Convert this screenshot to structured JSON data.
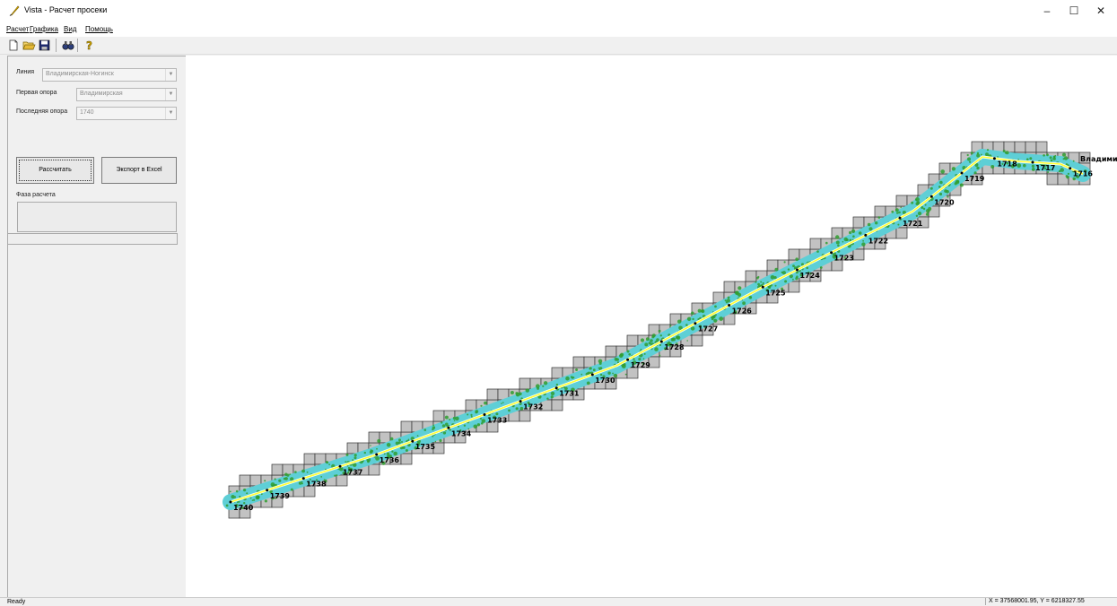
{
  "window": {
    "title": "Vista - Расчет просеки",
    "minimize": "–",
    "maximize": "☐",
    "close": "✕"
  },
  "menu": [
    "Расчет",
    "Графика",
    "Вид",
    "Помощь"
  ],
  "toolbar": {
    "icons": [
      "new-file-icon",
      "open-folder-icon",
      "save-icon",
      "binoculars-icon",
      "help-icon"
    ]
  },
  "form": {
    "line_label": "Линия",
    "line_value": "Владимирская-Ногинск",
    "first_support_label": "Первая опора",
    "first_support_value": "Владимирская",
    "last_support_label": "Последняя опора",
    "last_support_value": "1740",
    "calculate_button": "Рассчитать",
    "export_button": "Экспорт в Excel",
    "phase_label": "Фаза расчета",
    "phase_value": ""
  },
  "map": {
    "supports": [
      "1740",
      "1739",
      "1738",
      "1737",
      "1736",
      "1735",
      "1734",
      "1733",
      "1732",
      "1731",
      "1730",
      "1729",
      "1728",
      "1727",
      "1726",
      "1725",
      "1724",
      "1723",
      "1722",
      "1721",
      "1720",
      "1719",
      "1718",
      "1717",
      "1716"
    ],
    "end_label": "Владими",
    "colors": {
      "tile": "#c2c2c2",
      "tile_border": "#333333",
      "corridor": "#5ecfd6",
      "route": "#ffff33",
      "vegetation": "#2f9e2f"
    }
  },
  "status": {
    "left": "Ready",
    "coords": "X = 37568001.95, Y = 6218327.55"
  }
}
